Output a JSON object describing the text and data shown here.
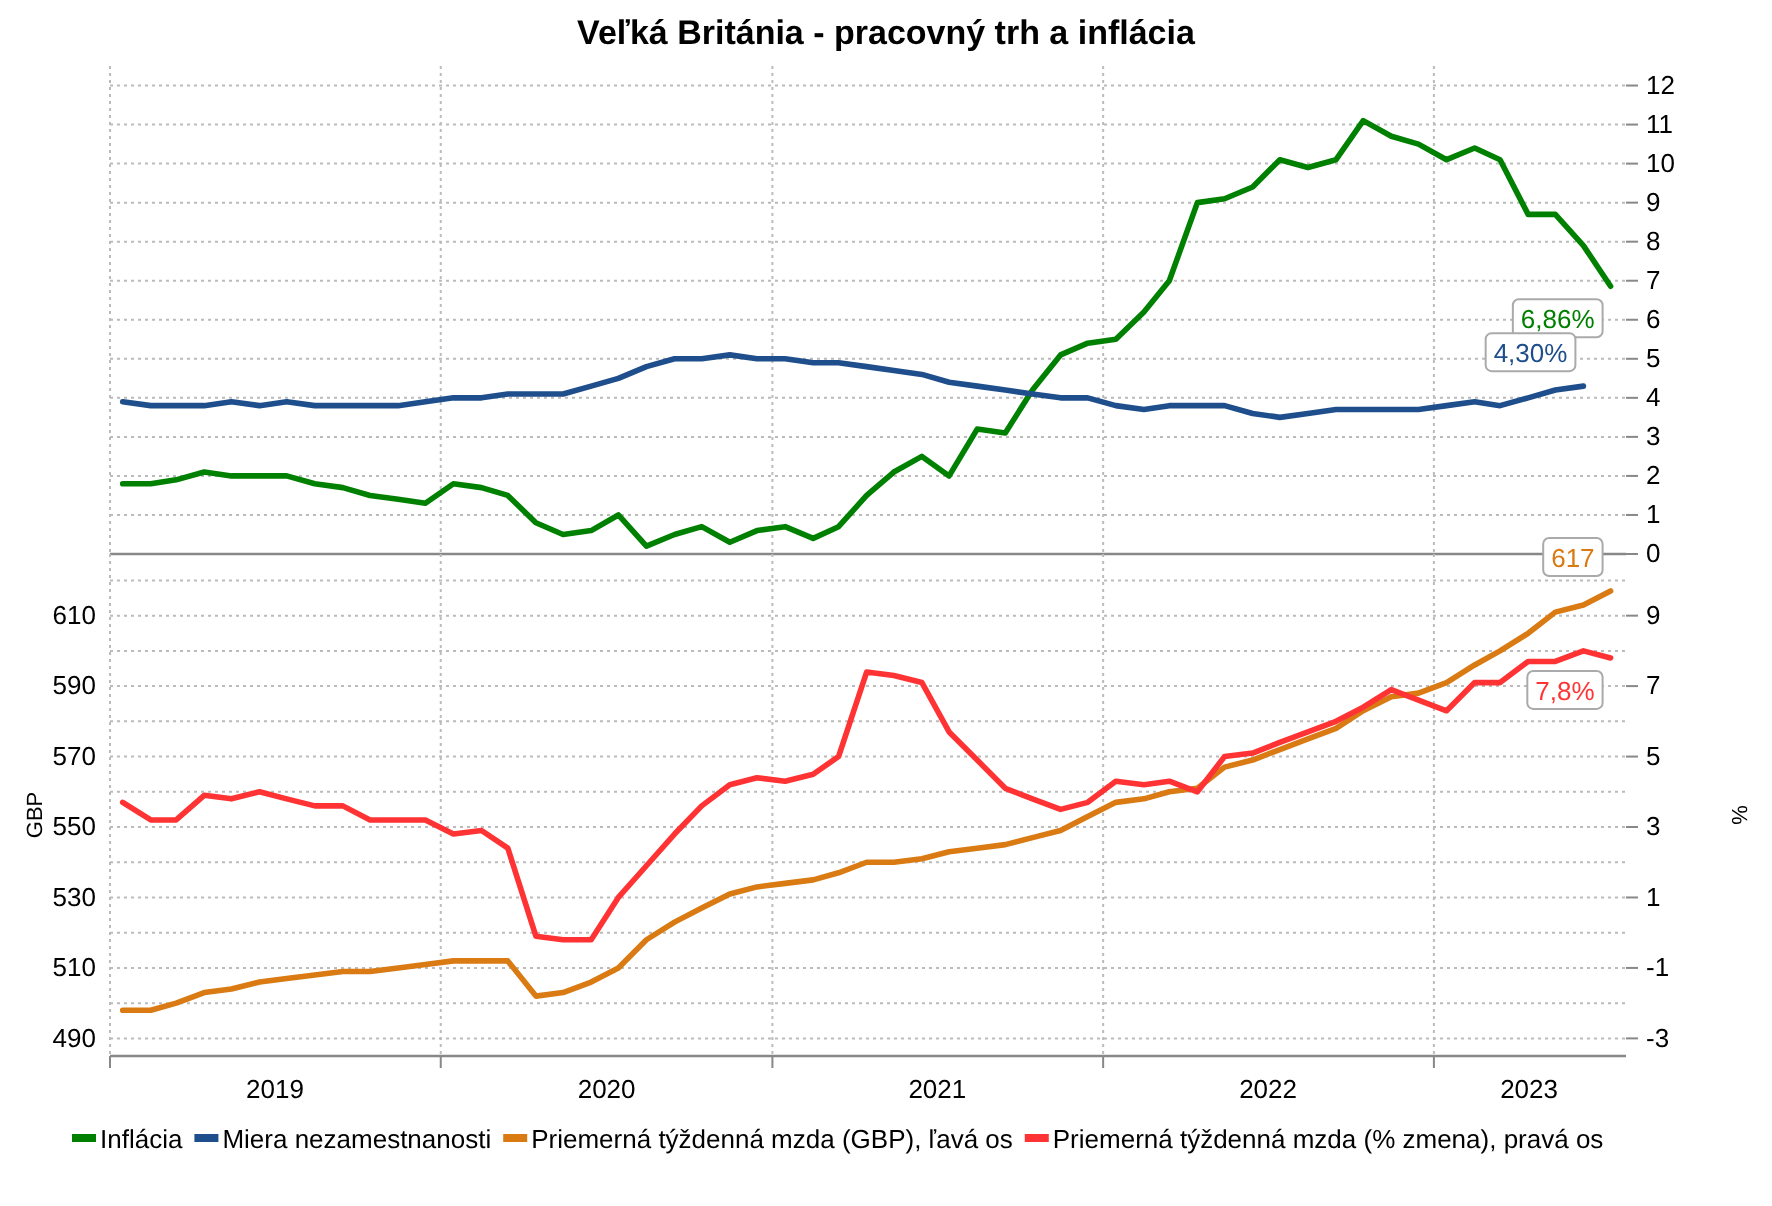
{
  "chart_data": [
    {
      "type": "line",
      "title": "Veľká Británia - pracovný trh a inflácia",
      "x": [
        "2019-01-15",
        "2019-02-15",
        "2019-03-15",
        "2019-04-15",
        "2019-05-15",
        "2019-06-15",
        "2019-07-15",
        "2019-08-15",
        "2019-09-15",
        "2019-10-15",
        "2019-11-15",
        "2019-12-15",
        "2020-01-15",
        "2020-02-15",
        "2020-03-15",
        "2020-04-15",
        "2020-05-15",
        "2020-06-15",
        "2020-07-15",
        "2020-08-15",
        "2020-09-15",
        "2020-10-15",
        "2020-11-15",
        "2020-12-15",
        "2021-01-15",
        "2021-02-15",
        "2021-03-15",
        "2021-04-15",
        "2021-05-15",
        "2021-06-15",
        "2021-07-15",
        "2021-08-15",
        "2021-09-15",
        "2021-10-15",
        "2021-11-15",
        "2021-12-15",
        "2022-01-15",
        "2022-02-15",
        "2022-03-15",
        "2022-04-15",
        "2022-05-15",
        "2022-06-15",
        "2022-07-15",
        "2022-08-15",
        "2022-09-15",
        "2022-10-15",
        "2022-11-15",
        "2022-12-15",
        "2023-01-15",
        "2023-02-15",
        "2023-03-15",
        "2023-04-15",
        "2023-05-15",
        "2023-06-15",
        "2023-07-15"
      ],
      "series": [
        {
          "name": "Inflácia",
          "color": "#008000",
          "values": [
            1.8,
            1.8,
            1.9,
            2.1,
            2.0,
            2.0,
            2.0,
            1.8,
            1.7,
            1.5,
            1.4,
            1.3,
            1.8,
            1.7,
            1.5,
            0.8,
            0.5,
            0.6,
            1.0,
            0.2,
            0.5,
            0.7,
            0.3,
            0.6,
            0.7,
            0.4,
            0.7,
            1.5,
            2.1,
            2.5,
            2.0,
            3.2,
            3.1,
            4.2,
            5.1,
            5.4,
            5.5,
            6.2,
            7.0,
            9.0,
            9.1,
            9.4,
            10.1,
            9.9,
            10.1,
            11.1,
            10.7,
            10.5,
            10.1,
            10.4,
            10.1,
            8.7,
            8.7,
            7.9,
            6.86
          ],
          "value_labels": [
            null,
            null,
            null,
            null,
            null,
            null,
            null,
            null,
            null,
            null,
            null,
            null,
            null,
            null,
            null,
            null,
            null,
            null,
            null,
            null,
            null,
            null,
            null,
            null,
            null,
            null,
            null,
            null,
            null,
            null,
            null,
            null,
            null,
            null,
            null,
            null,
            null,
            null,
            null,
            null,
            null,
            null,
            null,
            null,
            null,
            null,
            null,
            null,
            null,
            null,
            null,
            null,
            null,
            null,
            "6,86%"
          ]
        },
        {
          "name": "Miera nezamestnanosti",
          "color": "#1f4e8c",
          "values": [
            3.9,
            3.8,
            3.8,
            3.8,
            3.9,
            3.8,
            3.9,
            3.8,
            3.8,
            3.8,
            3.8,
            3.9,
            4.0,
            4.0,
            4.1,
            4.1,
            4.1,
            4.3,
            4.5,
            4.8,
            5.0,
            5.0,
            5.1,
            5.0,
            5.0,
            4.9,
            4.9,
            4.8,
            4.7,
            4.6,
            4.4,
            4.3,
            4.2,
            4.1,
            4.0,
            4.0,
            3.8,
            3.7,
            3.8,
            3.8,
            3.8,
            3.6,
            3.5,
            3.6,
            3.7,
            3.7,
            3.7,
            3.7,
            3.8,
            3.9,
            3.8,
            4.0,
            4.2,
            4.3,
            null
          ],
          "value_labels": [
            null,
            null,
            null,
            null,
            null,
            null,
            null,
            null,
            null,
            null,
            null,
            null,
            null,
            null,
            null,
            null,
            null,
            null,
            null,
            null,
            null,
            null,
            null,
            null,
            null,
            null,
            null,
            null,
            null,
            null,
            null,
            null,
            null,
            null,
            null,
            null,
            null,
            null,
            null,
            null,
            null,
            null,
            null,
            null,
            null,
            null,
            null,
            null,
            null,
            null,
            null,
            null,
            null,
            "4,30%",
            null
          ]
        }
      ],
      "xlim": [
        "2019-01-01",
        "2023-08-01"
      ],
      "xticks": [
        {
          "value": "2019-01-01",
          "label": null
        },
        {
          "value": "2020-01-01",
          "label": null
        },
        {
          "value": "2021-01-01",
          "label": null
        },
        {
          "value": "2022-01-01",
          "label": null
        },
        {
          "value": "2023-01-01",
          "label": null
        }
      ],
      "ylim": [
        0,
        12.5
      ],
      "yticks": [
        0,
        1,
        2,
        3,
        4,
        5,
        6,
        7,
        8,
        9,
        10,
        11,
        12
      ],
      "tick_labels": "y",
      "grid": true,
      "legend": "bottom"
    },
    {
      "type": "line",
      "ylabel": "GBP",
      "y2label": "%",
      "x": [
        "2019-01-15",
        "2019-02-15",
        "2019-03-15",
        "2019-04-15",
        "2019-05-15",
        "2019-06-15",
        "2019-07-15",
        "2019-08-15",
        "2019-09-15",
        "2019-10-15",
        "2019-11-15",
        "2019-12-15",
        "2020-01-15",
        "2020-02-15",
        "2020-03-15",
        "2020-04-15",
        "2020-05-15",
        "2020-06-15",
        "2020-07-15",
        "2020-08-15",
        "2020-09-15",
        "2020-10-15",
        "2020-11-15",
        "2020-12-15",
        "2021-01-15",
        "2021-02-15",
        "2021-03-15",
        "2021-04-15",
        "2021-05-15",
        "2021-06-15",
        "2021-07-15",
        "2021-08-15",
        "2021-09-15",
        "2021-10-15",
        "2021-11-15",
        "2021-12-15",
        "2022-01-15",
        "2022-02-15",
        "2022-03-15",
        "2022-04-15",
        "2022-05-15",
        "2022-06-15",
        "2022-07-15",
        "2022-08-15",
        "2022-09-15",
        "2022-10-15",
        "2022-11-15",
        "2022-12-15",
        "2023-01-15",
        "2023-02-15",
        "2023-03-15",
        "2023-04-15",
        "2023-05-15",
        "2023-06-15",
        "2023-07-15"
      ],
      "series": [
        {
          "name": "Priemerná týždenná mzda (GBP), ľavá os",
          "color": "#d97a12",
          "values": [
            498,
            498,
            500,
            503,
            504,
            506,
            507,
            508,
            509,
            509,
            510,
            511,
            512,
            512,
            512,
            502,
            503,
            506,
            510,
            518,
            523,
            527,
            531,
            533,
            534,
            535,
            537,
            540,
            540,
            541,
            543,
            544,
            545,
            547,
            549,
            553,
            557,
            558,
            560,
            561,
            567,
            569,
            572,
            575,
            578,
            583,
            587,
            588,
            591,
            596,
            600,
            605,
            611,
            613,
            617
          ],
          "value_labels": [
            null,
            null,
            null,
            null,
            null,
            null,
            null,
            null,
            null,
            null,
            null,
            null,
            null,
            null,
            null,
            null,
            null,
            null,
            null,
            null,
            null,
            null,
            null,
            null,
            null,
            null,
            null,
            null,
            null,
            null,
            null,
            null,
            null,
            null,
            null,
            null,
            null,
            null,
            null,
            null,
            null,
            null,
            null,
            null,
            null,
            null,
            null,
            null,
            null,
            null,
            null,
            null,
            null,
            null,
            "617"
          ]
        },
        {
          "name": "Priemerná týždenná mzda (% zmena), pravá os",
          "color": "#ff3333",
          "axis": "y2",
          "values": [
            3.7,
            3.2,
            3.2,
            3.9,
            3.8,
            4.0,
            3.8,
            3.6,
            3.6,
            3.2,
            3.2,
            3.2,
            2.8,
            2.9,
            2.4,
            -0.1,
            -0.2,
            -0.2,
            1.0,
            1.9,
            2.8,
            3.6,
            4.2,
            4.4,
            4.3,
            4.5,
            5.0,
            7.4,
            7.3,
            7.1,
            5.7,
            4.9,
            4.1,
            3.8,
            3.5,
            3.7,
            4.3,
            4.2,
            4.3,
            4.0,
            5.0,
            5.1,
            5.4,
            5.7,
            6.0,
            6.4,
            6.9,
            6.6,
            6.3,
            7.1,
            7.1,
            7.7,
            7.7,
            8.0,
            7.8
          ],
          "value_labels": [
            null,
            null,
            null,
            null,
            null,
            null,
            null,
            null,
            null,
            null,
            null,
            null,
            null,
            null,
            null,
            null,
            null,
            null,
            null,
            null,
            null,
            null,
            null,
            null,
            null,
            null,
            null,
            null,
            null,
            null,
            null,
            null,
            null,
            null,
            null,
            null,
            null,
            null,
            null,
            null,
            null,
            null,
            null,
            null,
            null,
            null,
            null,
            null,
            null,
            null,
            null,
            null,
            null,
            null,
            "7,8%"
          ]
        }
      ],
      "xlim": [
        "2019-01-01",
        "2023-08-01"
      ],
      "xticks": [
        {
          "value": "2019-01-01",
          "label": null
        },
        {
          "value": "2019-07-02",
          "label": "2019"
        },
        {
          "value": "2020-01-01",
          "label": null
        },
        {
          "value": "2020-07-02",
          "label": "2020"
        },
        {
          "value": "2021-01-01",
          "label": null
        },
        {
          "value": "2021-07-02",
          "label": "2021"
        },
        {
          "value": "2022-01-01",
          "label": null
        },
        {
          "value": "2022-07-02",
          "label": "2022"
        },
        {
          "value": "2023-01-01",
          "label": null
        },
        {
          "value": "2023-04-16",
          "label": "2023"
        }
      ],
      "ylim": [
        485,
        627.5
      ],
      "yticks": [
        490,
        {
          "value": 500,
          "label": null
        },
        510,
        {
          "value": 520,
          "label": null
        },
        530,
        {
          "value": 540,
          "label": null
        },
        550,
        {
          "value": 560,
          "label": null
        },
        570,
        {
          "value": 580,
          "label": null
        },
        590,
        {
          "value": 600,
          "label": null
        },
        610,
        {
          "value": 620,
          "label": null
        }
      ],
      "y2lim": [
        -3.5,
        10.75
      ],
      "y2ticks": [
        -3,
        -1,
        1,
        3,
        5,
        7,
        9
      ],
      "grid": true,
      "legend": "bottom"
    }
  ]
}
